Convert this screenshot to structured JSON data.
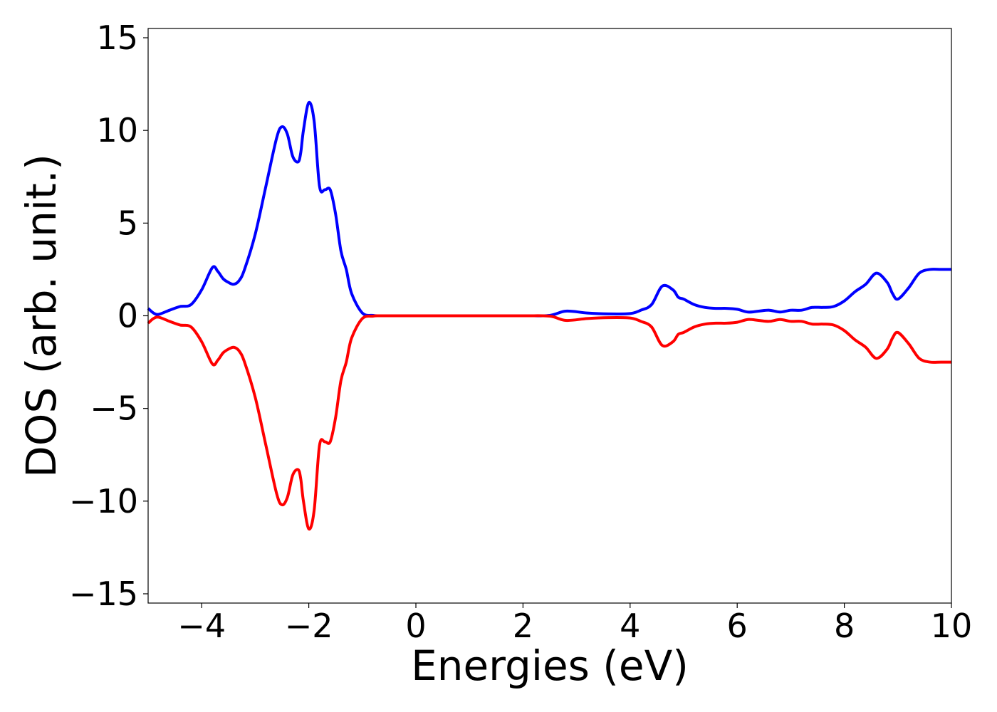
{
  "chart_data": {
    "type": "line",
    "title": "",
    "xlabel": "Energies (eV)",
    "ylabel": "DOS (arb. unit.)",
    "xlim": [
      -5,
      10
    ],
    "ylim": [
      -15.5,
      15.5
    ],
    "grid": false,
    "legend": "none",
    "x_ticks": [
      -4,
      -2,
      0,
      2,
      4,
      6,
      8,
      10
    ],
    "x_tick_labels": [
      "−4",
      "−2",
      "0",
      "2",
      "4",
      "6",
      "8",
      "10"
    ],
    "y_ticks": [
      -15,
      -10,
      -5,
      0,
      5,
      10,
      15
    ],
    "y_tick_labels": [
      "−15",
      "−10",
      "−5",
      "0",
      "5",
      "10",
      "15"
    ],
    "series": [
      {
        "color": "#0000ff",
        "x": [
          -5.0,
          -4.9,
          -4.8,
          -4.6,
          -4.4,
          -4.2,
          -4.0,
          -3.8,
          -3.7,
          -3.6,
          -3.5,
          -3.4,
          -3.3,
          -3.2,
          -3.0,
          -2.8,
          -2.6,
          -2.5,
          -2.4,
          -2.3,
          -2.2,
          -2.15,
          -2.1,
          -2.0,
          -1.9,
          -1.8,
          -1.7,
          -1.6,
          -1.5,
          -1.4,
          -1.3,
          -1.2,
          -1.0,
          -0.8,
          -0.7,
          -0.6,
          -0.5,
          0.0,
          1.0,
          2.0,
          2.5,
          2.8,
          3.2,
          3.6,
          4.0,
          4.2,
          4.4,
          4.6,
          4.8,
          4.9,
          5.0,
          5.2,
          5.4,
          5.6,
          5.8,
          6.0,
          6.2,
          6.4,
          6.6,
          6.8,
          7.0,
          7.2,
          7.4,
          7.6,
          7.8,
          8.0,
          8.2,
          8.4,
          8.6,
          8.8,
          8.9,
          9.0,
          9.2,
          9.4,
          9.6,
          9.8,
          10.0
        ],
        "y": [
          0.4,
          0.15,
          0.08,
          0.3,
          0.5,
          0.6,
          1.4,
          2.6,
          2.4,
          2.0,
          1.8,
          1.7,
          1.9,
          2.5,
          4.4,
          7.0,
          9.6,
          10.2,
          9.8,
          8.6,
          8.3,
          8.8,
          10.0,
          11.5,
          10.5,
          7.0,
          6.8,
          6.8,
          5.5,
          3.5,
          2.5,
          1.2,
          0.15,
          0.02,
          0.0,
          0.0,
          0.0,
          0.0,
          0.0,
          0.0,
          0.02,
          0.25,
          0.15,
          0.1,
          0.12,
          0.3,
          0.6,
          1.6,
          1.4,
          1.0,
          0.9,
          0.6,
          0.45,
          0.4,
          0.4,
          0.35,
          0.2,
          0.25,
          0.3,
          0.2,
          0.3,
          0.3,
          0.45,
          0.45,
          0.5,
          0.8,
          1.3,
          1.7,
          2.3,
          1.8,
          1.2,
          0.9,
          1.5,
          2.3,
          2.5,
          2.5,
          2.5
        ]
      },
      {
        "color": "#ff0000",
        "x": [
          -5.0,
          -4.9,
          -4.8,
          -4.6,
          -4.4,
          -4.2,
          -4.0,
          -3.8,
          -3.7,
          -3.6,
          -3.5,
          -3.4,
          -3.3,
          -3.2,
          -3.0,
          -2.8,
          -2.6,
          -2.5,
          -2.4,
          -2.3,
          -2.2,
          -2.15,
          -2.1,
          -2.0,
          -1.9,
          -1.8,
          -1.7,
          -1.6,
          -1.5,
          -1.4,
          -1.3,
          -1.2,
          -1.0,
          -0.8,
          -0.7,
          -0.6,
          -0.5,
          0.0,
          1.0,
          2.0,
          2.5,
          2.8,
          3.2,
          3.6,
          4.0,
          4.2,
          4.4,
          4.6,
          4.8,
          4.9,
          5.0,
          5.2,
          5.4,
          5.6,
          5.8,
          6.0,
          6.2,
          6.4,
          6.6,
          6.8,
          7.0,
          7.2,
          7.4,
          7.6,
          7.8,
          8.0,
          8.2,
          8.4,
          8.6,
          8.8,
          8.9,
          9.0,
          9.2,
          9.4,
          9.6,
          9.8,
          10.0
        ],
        "y": [
          -0.4,
          -0.15,
          -0.08,
          -0.3,
          -0.5,
          -0.6,
          -1.4,
          -2.6,
          -2.4,
          -2.0,
          -1.8,
          -1.7,
          -1.9,
          -2.5,
          -4.4,
          -7.0,
          -9.6,
          -10.2,
          -9.8,
          -8.6,
          -8.3,
          -8.8,
          -10.0,
          -11.5,
          -10.5,
          -7.0,
          -6.8,
          -6.8,
          -5.5,
          -3.5,
          -2.5,
          -1.2,
          -0.15,
          -0.02,
          0.0,
          0.0,
          0.0,
          0.0,
          0.0,
          0.0,
          -0.02,
          -0.25,
          -0.15,
          -0.1,
          -0.12,
          -0.3,
          -0.6,
          -1.6,
          -1.4,
          -1.0,
          -0.9,
          -0.6,
          -0.45,
          -0.4,
          -0.4,
          -0.35,
          -0.2,
          -0.25,
          -0.3,
          -0.2,
          -0.3,
          -0.3,
          -0.45,
          -0.45,
          -0.5,
          -0.8,
          -1.3,
          -1.7,
          -2.3,
          -1.8,
          -1.2,
          -0.9,
          -1.5,
          -2.3,
          -2.5,
          -2.5,
          -2.5
        ]
      }
    ]
  }
}
